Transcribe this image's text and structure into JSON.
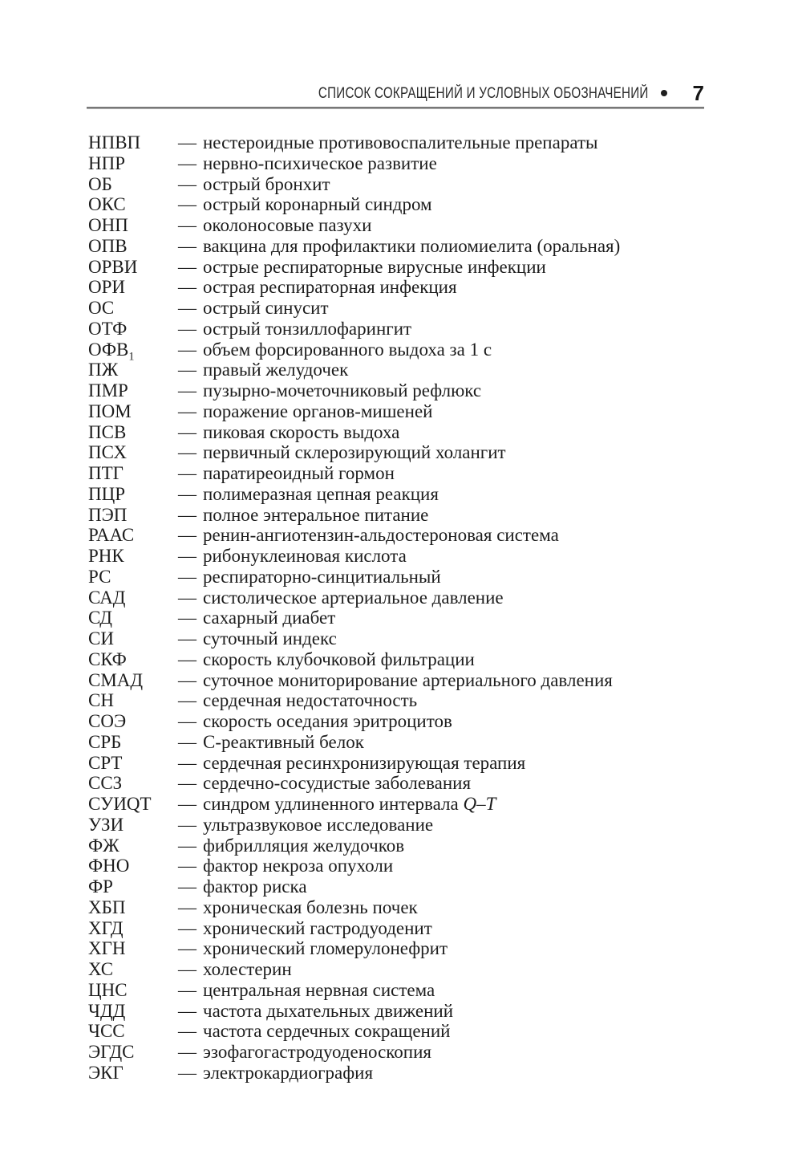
{
  "colors": {
    "background": "#ffffff",
    "text": "#1d1d1d",
    "rule": "#8b8b8b"
  },
  "page": {
    "header": {
      "title": "СПИСОК СОКРАЩЕНИЙ И УСЛОВНЫХ ОБОЗНАЧЕНИЙ",
      "bullet": "•",
      "page_number": "7"
    },
    "list": {
      "dash": "—",
      "entries": [
        {
          "abbr": "НПВП",
          "def": "нестероидные противовоспалительные препараты"
        },
        {
          "abbr": "НПР",
          "def": "нервно-психическое развитие"
        },
        {
          "abbr": "ОБ",
          "def": "острый бронхит"
        },
        {
          "abbr": "ОКС",
          "def": "острый коронарный синдром"
        },
        {
          "abbr": "ОНП",
          "def": "околоносовые пазухи"
        },
        {
          "abbr": "ОПВ",
          "def": "вакцина для профилактики полиомиелита (оральная)"
        },
        {
          "abbr": "ОРВИ",
          "def": "острые респираторные вирусные инфекции"
        },
        {
          "abbr": "ОРИ",
          "def": "острая респираторная инфекция"
        },
        {
          "abbr": "ОС",
          "def": "острый синусит"
        },
        {
          "abbr": "ОТФ",
          "def": "острый тонзиллофарингит"
        },
        {
          "abbr": "ОФВ",
          "abbr_sub": "1",
          "def": "объем форсированного выдоха за 1 с"
        },
        {
          "abbr": "ПЖ",
          "def": "правый желудочек"
        },
        {
          "abbr": "ПМР",
          "def": "пузырно-мочеточниковый рефлюкс"
        },
        {
          "abbr": "ПОМ",
          "def": "поражение органов-мишеней"
        },
        {
          "abbr": "ПСВ",
          "def": "пиковая скорость выдоха"
        },
        {
          "abbr": "ПСХ",
          "def": "первичный склерозирующий холангит"
        },
        {
          "abbr": "ПТГ",
          "def": "паратиреоидный гормон"
        },
        {
          "abbr": "ПЦР",
          "def": "полимеразная цепная реакция"
        },
        {
          "abbr": "ПЭП",
          "def": "полное энтеральное питание"
        },
        {
          "abbr": "РААС",
          "def": "ренин-ангиотензин-альдостероновая система"
        },
        {
          "abbr": "РНК",
          "def": "рибонуклеиновая кислота"
        },
        {
          "abbr": "РС",
          "def": "респираторно-синцитиальный"
        },
        {
          "abbr": "САД",
          "def": "систолическое артериальное давление"
        },
        {
          "abbr": "СД",
          "def": "сахарный диабет"
        },
        {
          "abbr": "СИ",
          "def": "суточный индекс"
        },
        {
          "abbr": "СКФ",
          "def": "скорость клубочковой фильтрации"
        },
        {
          "abbr": "СМАД",
          "def": "суточное мониторирование артериального давления"
        },
        {
          "abbr": "СН",
          "def": "сердечная недостаточность"
        },
        {
          "abbr": "СОЭ",
          "def": "скорость оседания эритроцитов"
        },
        {
          "abbr": "СРБ",
          "def": "С-реактивный белок"
        },
        {
          "abbr": "СРТ",
          "def": "сердечная ресинхронизирующая терапия"
        },
        {
          "abbr": "ССЗ",
          "def": "сердечно-сосудистые заболевания"
        },
        {
          "abbr": "СУИQT",
          "def": "синдром удлиненного интервала ",
          "def_italic": "Q–T"
        },
        {
          "abbr": "УЗИ",
          "def": "ультразвуковое исследование"
        },
        {
          "abbr": "ФЖ",
          "def": "фибрилляция желудочков"
        },
        {
          "abbr": "ФНО",
          "def": "фактор некроза опухоли"
        },
        {
          "abbr": "ФР",
          "def": "фактор риска"
        },
        {
          "abbr": "ХБП",
          "def": "хроническая болезнь почек"
        },
        {
          "abbr": "ХГД",
          "def": "хронический гастродуоденит"
        },
        {
          "abbr": "ХГН",
          "def": "хронический гломерулонефрит"
        },
        {
          "abbr": "ХС",
          "def": "холестерин"
        },
        {
          "abbr": "ЦНС",
          "def": "центральная нервная система"
        },
        {
          "abbr": "ЧДД",
          "def": "частота дыхательных движений"
        },
        {
          "abbr": "ЧСС",
          "def": "частота сердечных сокращений"
        },
        {
          "abbr": "ЭГДС",
          "def": "эзофагогастродуоденоскопия"
        },
        {
          "abbr": "ЭКГ",
          "def": "электрокардиография"
        }
      ]
    }
  }
}
